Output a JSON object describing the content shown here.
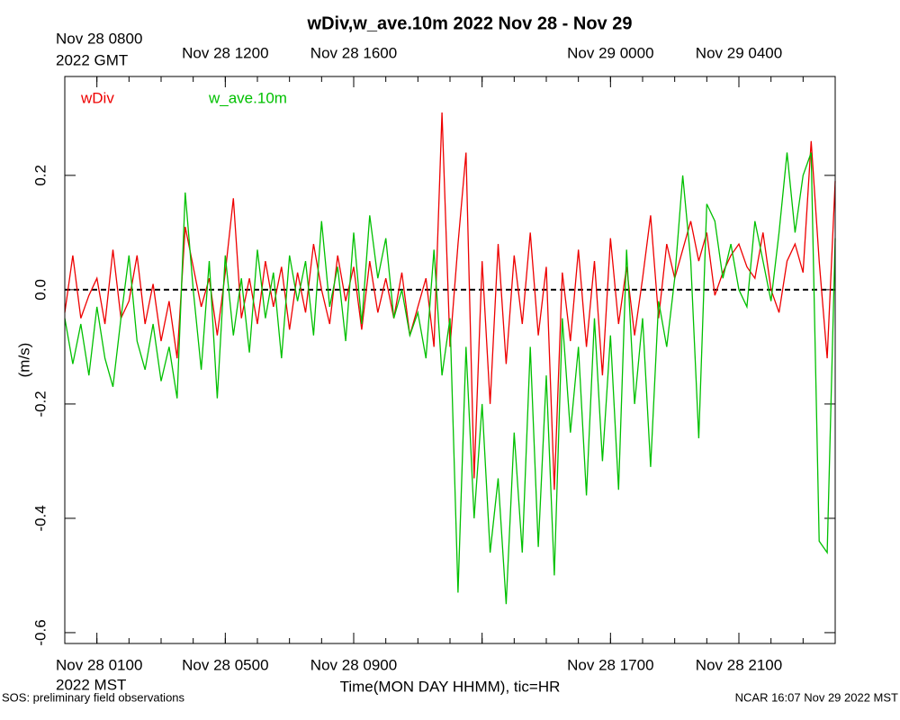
{
  "chart_data": {
    "type": "line",
    "title": "wDiv,w_ave.10m 2022 Nov 28 - Nov 29",
    "y_label": "(m/s)",
    "x_label": "Time(MON DAY HHMM), tic=HR",
    "x_zone_label": "2022 MST",
    "x2_zone_label": "2022 GMT",
    "footer_left": "SOS: preliminary field observations",
    "footer_right": "NCAR 16:07 Nov 29 2022 MST",
    "xlim": [
      0,
      24
    ],
    "ylim": [
      -0.619,
      0.373
    ],
    "yticks": [
      0.2,
      {
        "value": 0,
        "label": "0.0"
      },
      -0.2,
      -0.4,
      -0.6
    ],
    "xticks": [
      {
        "value": 1,
        "label": "Nov 28 0100"
      },
      {
        "value": 5,
        "label": "Nov 28 0500"
      },
      {
        "value": 9,
        "label": "Nov 28 0900"
      },
      {
        "value": 17,
        "label": "Nov 28 1700"
      },
      {
        "value": 21,
        "label": "Nov 28 2100"
      }
    ],
    "x2ticks": [
      {
        "value": 1,
        "label": "Nov 28 0800"
      },
      {
        "value": 5,
        "label": "Nov 28 1200"
      },
      {
        "value": 9,
        "label": "Nov 28 1600"
      },
      {
        "value": 17,
        "label": "Nov 29 0000"
      },
      {
        "value": 21,
        "label": "Nov 29 0400"
      }
    ],
    "x_major_ticks": [
      1,
      5,
      9,
      13,
      17,
      21
    ],
    "x_minor_ticks": [
      0,
      1,
      2,
      3,
      4,
      5,
      6,
      7,
      8,
      9,
      10,
      11,
      12,
      13,
      14,
      15,
      16,
      17,
      18,
      19,
      20,
      21,
      22,
      23,
      24
    ],
    "reference_line": {
      "y": 0,
      "color": "#000000",
      "dashed": true
    },
    "x": [
      0,
      0.25,
      0.5,
      0.75,
      1,
      1.25,
      1.5,
      1.75,
      2,
      2.25,
      2.5,
      2.75,
      3,
      3.25,
      3.5,
      3.75,
      4,
      4.25,
      4.5,
      4.75,
      5,
      5.25,
      5.5,
      5.75,
      6,
      6.25,
      6.5,
      6.75,
      7,
      7.25,
      7.5,
      7.75,
      8,
      8.25,
      8.5,
      8.75,
      9,
      9.25,
      9.5,
      9.75,
      10,
      10.25,
      10.5,
      10.75,
      11,
      11.25,
      11.5,
      11.75,
      12,
      12.25,
      12.5,
      12.75,
      13,
      13.25,
      13.5,
      13.75,
      14,
      14.25,
      14.5,
      14.75,
      15,
      15.25,
      15.5,
      15.75,
      16,
      16.25,
      16.5,
      16.75,
      17,
      17.25,
      17.5,
      17.75,
      18,
      18.25,
      18.5,
      18.75,
      19,
      19.25,
      19.5,
      19.75,
      20,
      20.25,
      20.5,
      20.75,
      21,
      21.25,
      21.5,
      21.75,
      22,
      22.25,
      22.5,
      22.75,
      23,
      23.25,
      23.5,
      23.75,
      24
    ],
    "series": [
      {
        "name": "wDiv",
        "color": "#ee0000",
        "values": [
          -0.04,
          0.06,
          -0.05,
          -0.01,
          0.02,
          -0.06,
          0.07,
          -0.05,
          -0.02,
          0.06,
          -0.06,
          0.01,
          -0.09,
          -0.02,
          -0.12,
          0.11,
          0.04,
          -0.03,
          0.02,
          -0.08,
          0.03,
          0.16,
          -0.05,
          0.02,
          -0.06,
          0.05,
          -0.03,
          0.04,
          -0.07,
          0.03,
          -0.04,
          0.08,
          0,
          -0.06,
          0.06,
          -0.02,
          0.04,
          -0.07,
          0.05,
          -0.04,
          0.02,
          -0.05,
          0.03,
          -0.08,
          -0.03,
          0.02,
          -0.1,
          0.31,
          -0.1,
          0.08,
          0.24,
          -0.33,
          0.05,
          -0.2,
          0.08,
          -0.13,
          0.06,
          -0.06,
          0.1,
          -0.08,
          0.04,
          -0.35,
          0.03,
          -0.09,
          0.07,
          -0.1,
          0.05,
          -0.15,
          0.09,
          -0.06,
          0.04,
          -0.08,
          0.02,
          0.13,
          -0.05,
          0.08,
          0.02,
          0.07,
          0.12,
          0.05,
          0.1,
          -0.01,
          0.03,
          0.06,
          0.08,
          0.04,
          0.02,
          0.1,
          0,
          -0.04,
          0.05,
          0.08,
          0.03,
          0.26,
          0.05,
          -0.12,
          0.19
        ]
      },
      {
        "name": "w_ave.10m",
        "color": "#00c000",
        "values": [
          -0.05,
          -0.13,
          -0.06,
          -0.15,
          -0.03,
          -0.12,
          -0.17,
          -0.05,
          0.06,
          -0.09,
          -0.14,
          -0.06,
          -0.16,
          -0.1,
          -0.19,
          0.17,
          0,
          -0.14,
          0.05,
          -0.19,
          0.06,
          -0.08,
          0.02,
          -0.11,
          0.07,
          -0.05,
          0.03,
          -0.12,
          0.06,
          -0.02,
          0.05,
          -0.08,
          0.12,
          -0.03,
          0.04,
          -0.09,
          0.1,
          -0.06,
          0.13,
          0.02,
          0.09,
          -0.05,
          0,
          -0.08,
          -0.04,
          -0.12,
          0.07,
          -0.15,
          -0.05,
          -0.53,
          -0.1,
          -0.4,
          -0.2,
          -0.46,
          -0.33,
          -0.55,
          -0.25,
          -0.46,
          -0.1,
          -0.45,
          -0.15,
          -0.5,
          -0.05,
          -0.25,
          -0.1,
          -0.36,
          -0.05,
          -0.3,
          -0.08,
          -0.35,
          0.07,
          -0.2,
          -0.05,
          -0.31,
          -0.02,
          -0.1,
          0.02,
          0.2,
          0.05,
          -0.26,
          0.15,
          0.12,
          0.02,
          0.08,
          0,
          -0.03,
          0.12,
          0.05,
          -0.02,
          0.1,
          0.24,
          0.1,
          0.2,
          0.24,
          -0.44,
          -0.46,
          0.09
        ]
      }
    ]
  }
}
